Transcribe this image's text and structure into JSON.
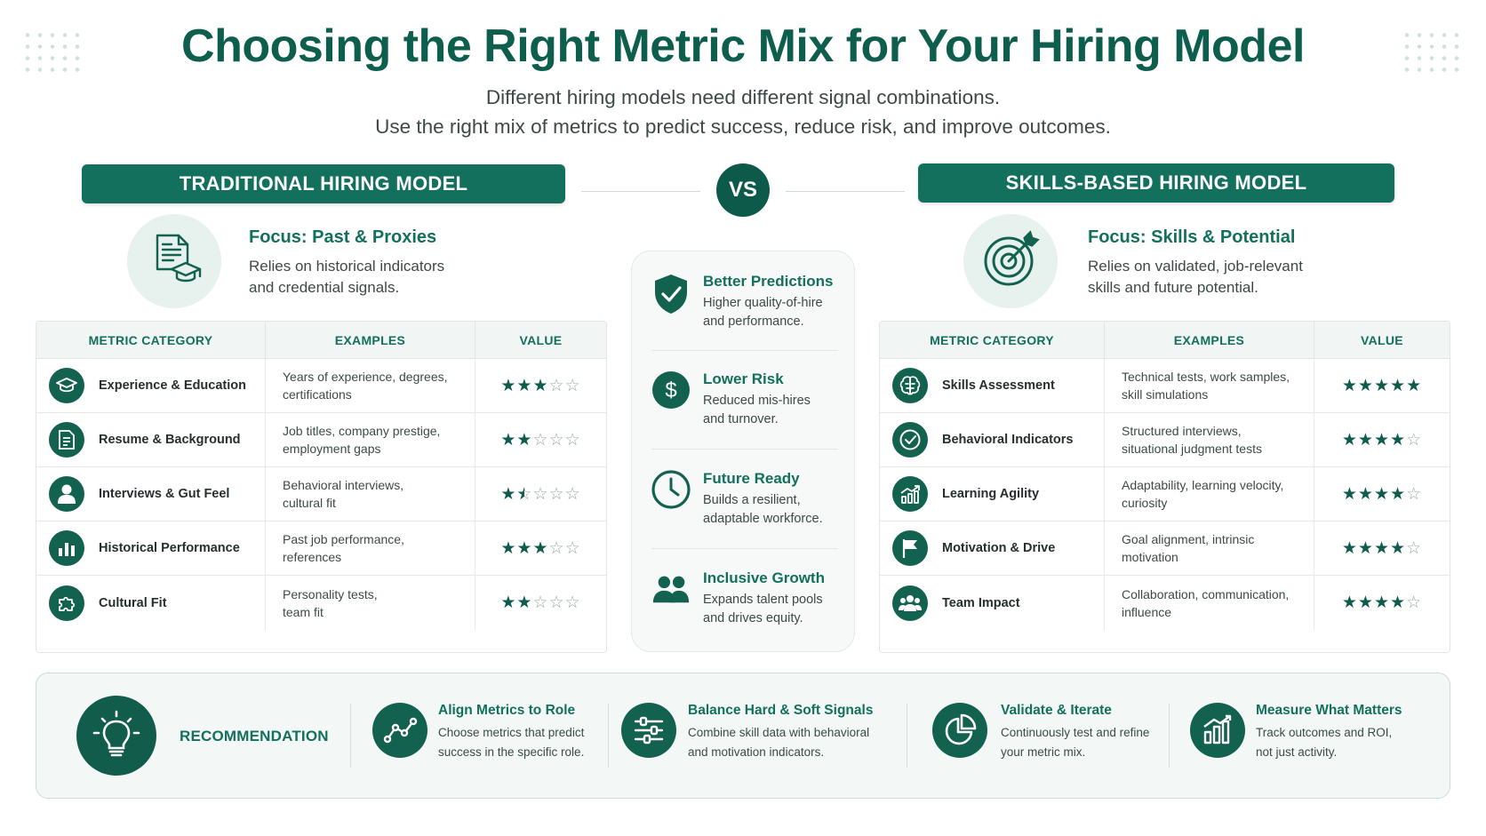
{
  "header": {
    "title": "Choosing the Right Metric Mix for Your Hiring Model",
    "subtitle_line1": "Different hiring models need different signal combinations.",
    "subtitle_line2": "Use the right mix of metrics to predict success, reduce risk, and improve outcomes."
  },
  "vs_label": "VS",
  "traditional": {
    "banner": "TRADITIONAL HIRING MODEL",
    "focus_title": "Focus: Past & Proxies",
    "focus_desc_line1": "Relies on historical indicators",
    "focus_desc_line2": "and credential signals.",
    "focus_icon": "resume-graduation-cap-icon",
    "headers": [
      "METRIC CATEGORY",
      "EXAMPLES",
      "VALUE"
    ],
    "rows": [
      {
        "category": "Experience & Education",
        "icon": "graduation-cap-icon",
        "ex1": "Years of experience, degrees,",
        "ex2": "certifications",
        "rating": 3
      },
      {
        "category": "Resume & Background",
        "icon": "document-icon",
        "ex1": "Job titles, company prestige,",
        "ex2": "employment gaps",
        "rating": 2
      },
      {
        "category": "Interviews & Gut Feel",
        "icon": "person-icon",
        "ex1": "Behavioral interviews,",
        "ex2": "cultural fit",
        "rating": 1.5
      },
      {
        "category": "Historical Performance",
        "icon": "bar-chart-icon",
        "ex1": "Past job performance,",
        "ex2": "references",
        "rating": 3
      },
      {
        "category": "Cultural Fit",
        "icon": "puzzle-icon",
        "ex1": "Personality tests,",
        "ex2": "team fit",
        "rating": 2
      }
    ]
  },
  "skills": {
    "banner": "SKILLS-BASED HIRING MODEL",
    "focus_title": "Focus: Skills & Potential",
    "focus_desc_line1": "Relies on validated, job-relevant",
    "focus_desc_line2": "skills and future potential.",
    "focus_icon": "target-icon",
    "headers": [
      "METRIC CATEGORY",
      "EXAMPLES",
      "VALUE"
    ],
    "rows": [
      {
        "category": "Skills Assessment",
        "icon": "brain-icon",
        "ex1": "Technical tests, work samples,",
        "ex2": "skill simulations",
        "rating": 5
      },
      {
        "category": "Behavioral Indicators",
        "icon": "check-circle-icon",
        "ex1": "Structured interviews,",
        "ex2": "situational judgment tests",
        "rating": 4
      },
      {
        "category": "Learning Agility",
        "icon": "growth-chart-icon",
        "ex1": "Adaptability, learning velocity,",
        "ex2": "curiosity",
        "rating": 4
      },
      {
        "category": "Motivation & Drive",
        "icon": "flag-icon",
        "ex1": "Goal alignment, intrinsic",
        "ex2": "motivation",
        "rating": 4
      },
      {
        "category": "Team Impact",
        "icon": "team-icon",
        "ex1": "Collaboration, communication,",
        "ex2": "influence",
        "rating": 4
      }
    ]
  },
  "benefits": [
    {
      "title": "Better Predictions",
      "d1": "Higher quality-of-hire",
      "d2": "and performance.",
      "icon": "shield-check-icon"
    },
    {
      "title": "Lower Risk",
      "d1": "Reduced mis-hires",
      "d2": "and turnover.",
      "icon": "dollar-icon"
    },
    {
      "title": "Future Ready",
      "d1": "Builds a resilient,",
      "d2": "adaptable workforce.",
      "icon": "clock-icon"
    },
    {
      "title": "Inclusive Growth",
      "d1": "Expands talent pools",
      "d2": "and drives equity.",
      "icon": "people-icon"
    }
  ],
  "recommendation": {
    "label": "RECOMMENDATION",
    "icon": "lightbulb-icon",
    "tips": [
      {
        "title": "Align Metrics to Role",
        "d1": "Choose metrics that predict",
        "d2": "success in the specific role.",
        "icon": "line-chart-icon"
      },
      {
        "title": "Balance Hard & Soft Signals",
        "d1": "Combine skill data with behavioral",
        "d2": "and motivation indicators.",
        "icon": "sliders-icon"
      },
      {
        "title": "Validate & Iterate",
        "d1": "Continuously test and refine",
        "d2": "your metric mix.",
        "icon": "pie-chart-icon"
      },
      {
        "title": "Measure What Matters",
        "d1": "Track outcomes and ROI,",
        "d2": "not just activity.",
        "icon": "bar-chart-icon"
      }
    ]
  },
  "colors": {
    "primary": "#12705c",
    "dark": "#0d5a4a",
    "light_bg": "#f3f8f6"
  }
}
